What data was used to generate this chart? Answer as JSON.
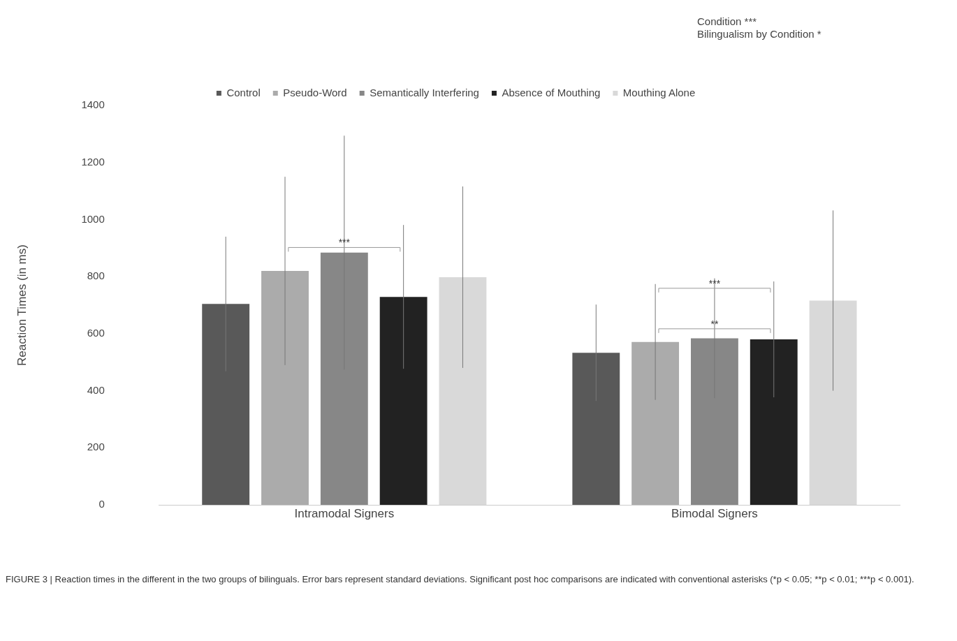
{
  "chart_data": {
    "type": "bar",
    "categories": [
      "Intramodal Signers",
      "Bimodal Signers"
    ],
    "ylabel": "Reaction Times (in ms)",
    "ylim": [
      0,
      1400
    ],
    "yticks": [
      0,
      200,
      400,
      600,
      800,
      1000,
      1200,
      1400
    ],
    "grid": false,
    "legend": "top",
    "series": [
      {
        "name": "Control",
        "color": "#595959",
        "values": [
          704,
          533
        ],
        "errors": [
          236,
          169
        ]
      },
      {
        "name": "Pseudo-Word",
        "color": "#ababab",
        "values": [
          820,
          571
        ],
        "errors": [
          330,
          203
        ]
      },
      {
        "name": "Semantically Interfering",
        "color": "#878787",
        "values": [
          884,
          584
        ],
        "errors": [
          410,
          210
        ]
      },
      {
        "name": "Absence of Mouthing",
        "color": "#222222",
        "values": [
          729,
          580
        ],
        "errors": [
          252,
          203
        ]
      },
      {
        "name": "Mouthing Alone",
        "color": "#d9d9d9",
        "values": [
          798,
          716
        ],
        "errors": [
          318,
          316
        ]
      }
    ],
    "annotations": [
      "Condition ***",
      "Bilingualism by Condition *",
      {
        "text": "***",
        "x": "Intramodal Signers",
        "y": 907
      },
      {
        "text": "**",
        "x": "Bimodal Signers",
        "y": 622
      },
      {
        "text": "***",
        "x": "Bimodal Signers",
        "y": 764
      },
      "FIGURE 3 | Reaction times in the different in the two groups of bilinguals. Error bars represent standard deviations. Significant post hoc comparisons are indicated with conventional asterisks (*p < 0.05; **p < 0.01; ***p < 0.001)."
    ]
  }
}
